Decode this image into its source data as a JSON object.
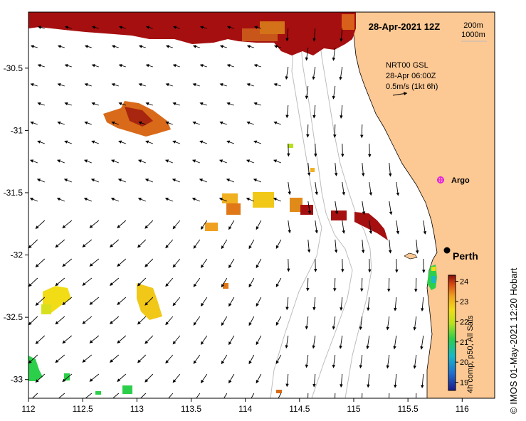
{
  "map": {
    "title": "28-Apr-2021 12Z",
    "contours": [
      "200m",
      "1000m"
    ],
    "current_info": [
      "NRT00 GSL",
      "28-Apr 06:00Z",
      "0.5m/s (1kt 6h)"
    ],
    "lon_range": [
      112,
      116.3
    ],
    "lat_range": [
      -33.15,
      -30.05
    ],
    "lon_ticks": [
      "112",
      "112.5",
      "113",
      "113.5",
      "114",
      "114.5",
      "115",
      "115.5",
      "116"
    ],
    "lat_ticks": [
      "-30.5",
      "-31",
      "-31.5",
      "-32",
      "-32.5",
      "-33"
    ],
    "places": [
      {
        "name": "Perth",
        "lon": 115.86,
        "lat": -31.95
      },
      {
        "name": "Argo",
        "lon": 115.75,
        "lat": -31.42
      }
    ],
    "colorbar": {
      "label": "4h comp, p50, All Sats",
      "ticks": [
        "19",
        "20",
        "21",
        "22",
        "23",
        "24"
      ],
      "min": 18.6,
      "max": 24.3
    },
    "credit": "© IMOS 01-May-2021 12:20 Hobart",
    "colors": {
      "land": "#fcc893",
      "warm": "#a50f0f",
      "cold": "#1a2a8c",
      "arrow": "#000000"
    }
  }
}
